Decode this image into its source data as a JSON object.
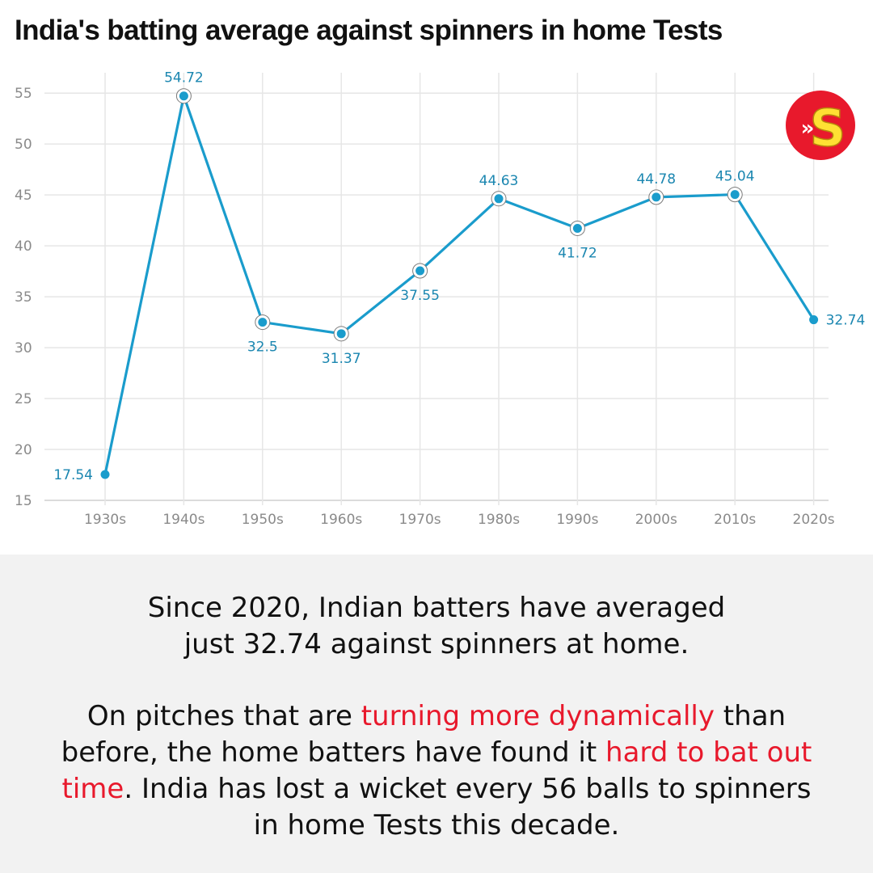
{
  "title": "India's batting average against spinners in home Tests",
  "logo": {
    "letter": "S",
    "chevrons": "»",
    "bg_color": "#e8192c",
    "fg_color": "#ffe033"
  },
  "chart_data": {
    "type": "line",
    "title": "India's batting average against spinners in home Tests",
    "xlabel": "",
    "ylabel": "",
    "categories": [
      "1930s",
      "1940s",
      "1950s",
      "1960s",
      "1970s",
      "1980s",
      "1990s",
      "2000s",
      "2010s",
      "2020s"
    ],
    "values": [
      17.54,
      54.72,
      32.5,
      31.37,
      37.55,
      44.63,
      41.72,
      44.78,
      45.04,
      32.74
    ],
    "value_labels": [
      "17.54",
      "54.72",
      "32.5",
      "31.37",
      "37.55",
      "44.63",
      "41.72",
      "44.78",
      "45.04",
      "32.74"
    ],
    "label_positions": [
      "left",
      "above",
      "below",
      "below",
      "below",
      "above",
      "below",
      "above",
      "above",
      "right"
    ],
    "yticks": [
      15,
      20,
      25,
      30,
      35,
      40,
      45,
      50,
      55
    ],
    "ylim": [
      15,
      57
    ],
    "grid": true,
    "line_color": "#1a9ccc",
    "label_color": "#1a86b0"
  },
  "caption": {
    "paragraph1": "Since 2020, Indian batters have averaged just 32.74 against spinners at home.",
    "paragraph2": [
      {
        "text": "On pitches that are ",
        "highlight": false
      },
      {
        "text": "turning more dynamically",
        "highlight": true
      },
      {
        "text": " than before, the home batters have found it ",
        "highlight": false
      },
      {
        "text": "hard to bat out time",
        "highlight": true
      },
      {
        "text": ". India has lost a wicket every 56 balls to spinners in home Tests this decade.",
        "highlight": false
      }
    ],
    "highlight_color": "#e8192c"
  }
}
